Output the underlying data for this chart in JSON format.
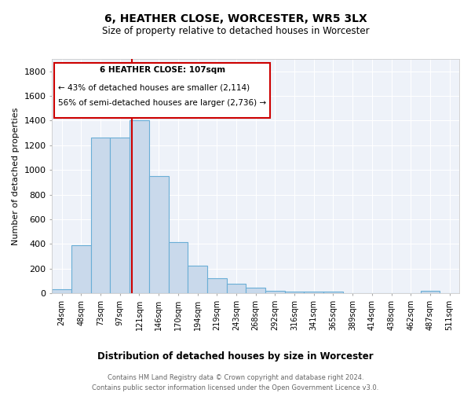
{
  "title": "6, HEATHER CLOSE, WORCESTER, WR5 3LX",
  "subtitle": "Size of property relative to detached houses in Worcester",
  "xlabel": "Distribution of detached houses by size in Worcester",
  "ylabel": "Number of detached properties",
  "bar_color": "#c9d9eb",
  "bar_edge_color": "#6aaed6",
  "background_color": "#eef2f9",
  "grid_color": "#ffffff",
  "annotation_box_color": "#cc0000",
  "vline_color": "#cc0000",
  "vline_x_index": 3.6,
  "annotation_title": "6 HEATHER CLOSE: 107sqm",
  "annotation_line1": "← 43% of detached houses are smaller (2,114)",
  "annotation_line2": "56% of semi-detached houses are larger (2,736) →",
  "footer_line1": "Contains HM Land Registry data © Crown copyright and database right 2024.",
  "footer_line2": "Contains public sector information licensed under the Open Government Licence v3.0.",
  "categories": [
    "24sqm",
    "48sqm",
    "73sqm",
    "97sqm",
    "121sqm",
    "146sqm",
    "170sqm",
    "194sqm",
    "219sqm",
    "243sqm",
    "268sqm",
    "292sqm",
    "316sqm",
    "341sqm",
    "365sqm",
    "389sqm",
    "414sqm",
    "438sqm",
    "462sqm",
    "487sqm",
    "511sqm"
  ],
  "values": [
    30,
    390,
    1265,
    1265,
    1400,
    950,
    415,
    225,
    120,
    75,
    45,
    18,
    15,
    15,
    15,
    0,
    0,
    0,
    0,
    18,
    0
  ],
  "ylim": [
    0,
    1900
  ],
  "yticks": [
    0,
    200,
    400,
    600,
    800,
    1000,
    1200,
    1400,
    1600,
    1800
  ],
  "fig_width": 6.0,
  "fig_height": 5.0,
  "fig_dpi": 100
}
